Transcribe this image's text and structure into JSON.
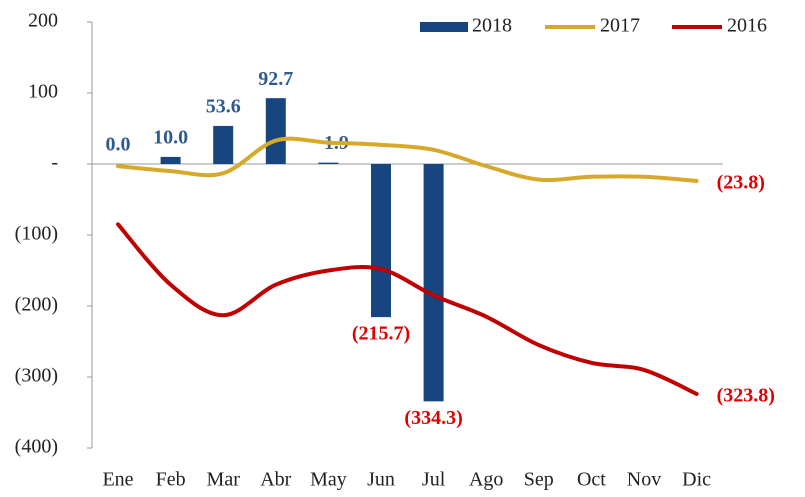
{
  "chart_data": {
    "type": "bar_line",
    "categories": [
      "Ene",
      "Feb",
      "Mar",
      "Abr",
      "May",
      "Jun",
      "Jul",
      "Ago",
      "Sep",
      "Oct",
      "Nov",
      "Dic"
    ],
    "series": [
      {
        "name": "2018",
        "type": "bar",
        "color": "#17457f",
        "values": [
          0.0,
          10.0,
          53.6,
          92.7,
          1.9,
          -215.7,
          -334.3,
          null,
          null,
          null,
          null,
          null
        ],
        "value_labels": [
          "0.0",
          "10.0",
          "53.6",
          "92.7",
          "1.9",
          "(215.7)",
          "(334.3)",
          null,
          null,
          null,
          null,
          null
        ]
      },
      {
        "name": "2017",
        "type": "line",
        "color": "#d6a92b",
        "values": [
          -3,
          -10,
          -13,
          33,
          30,
          27,
          20,
          -3,
          -22,
          -18,
          -18,
          -23.8
        ],
        "value_labels": [
          null,
          null,
          null,
          null,
          null,
          null,
          null,
          null,
          null,
          null,
          null,
          "(23.8)"
        ]
      },
      {
        "name": "2016",
        "type": "line",
        "color": "#c00000",
        "values": [
          -85,
          -170,
          -213,
          -170,
          -150,
          -148,
          -185,
          -215,
          -255,
          -280,
          -290,
          -323.8
        ],
        "value_labels": [
          null,
          null,
          null,
          null,
          null,
          null,
          null,
          null,
          null,
          null,
          null,
          "(323.8)"
        ]
      }
    ],
    "ylim": [
      -400,
      200
    ],
    "yticks": [
      200,
      100,
      {
        "value": 0,
        "label": "-"
      },
      {
        "value": -100,
        "label": "(100)"
      },
      {
        "value": -200,
        "label": "(200)"
      },
      {
        "value": -300,
        "label": "(300)"
      },
      {
        "value": -400,
        "label": "(400)"
      }
    ],
    "legend": "top-right"
  }
}
